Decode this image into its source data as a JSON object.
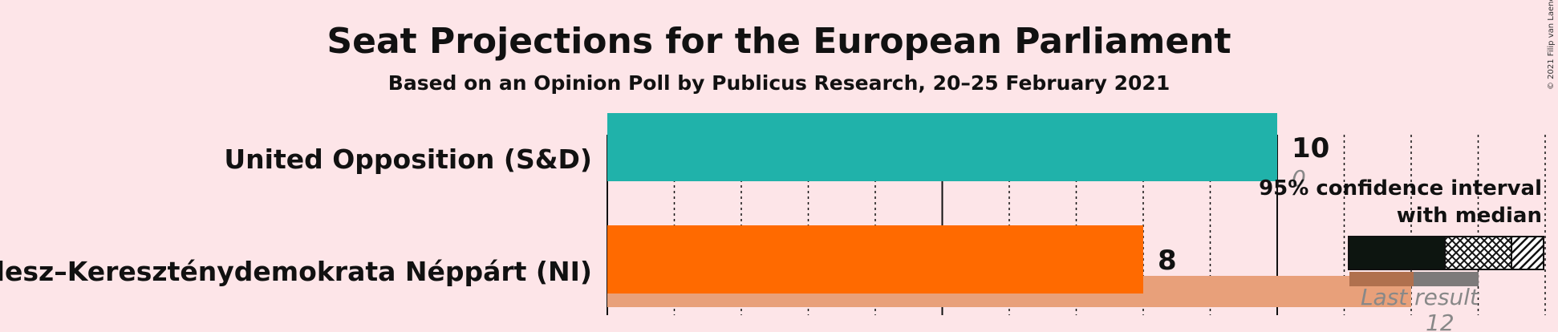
{
  "title": "Seat Projections for the European Parliament",
  "subtitle": "Based on an Opinion Poll by Publicus Research, 20–25 February 2021",
  "copyright": "© 2021 Filip van Laenen",
  "legend": {
    "line1": "95% confidence interval",
    "line2": "with median",
    "last_result": "Last result"
  },
  "colors": {
    "background": "#fde5e8",
    "sd": "#20b2aa",
    "ni": "#ff6a00",
    "ni_last": "#e8a07a",
    "legend_dark": "#0d1510",
    "legend_last": "#b0704e",
    "legend_last_grey": "#7d7a7a"
  },
  "chart_data": {
    "type": "bar",
    "orientation": "horizontal",
    "title": "Seat Projections for the European Parliament",
    "subtitle": "Based on an Opinion Poll by Publicus Research, 20–25 February 2021",
    "xlim": [
      0,
      14
    ],
    "categories": [
      "United Opposition (S&D)",
      "Fidesz–Kereszténydemokrata Néppárt (NI)"
    ],
    "series": [
      {
        "values": [
          10,
          8
        ]
      },
      {
        "name": "Last result",
        "values": [
          0,
          12
        ]
      }
    ],
    "value_labels": [
      "10",
      "8"
    ],
    "last_result_labels": [
      "0",
      "12"
    ]
  }
}
